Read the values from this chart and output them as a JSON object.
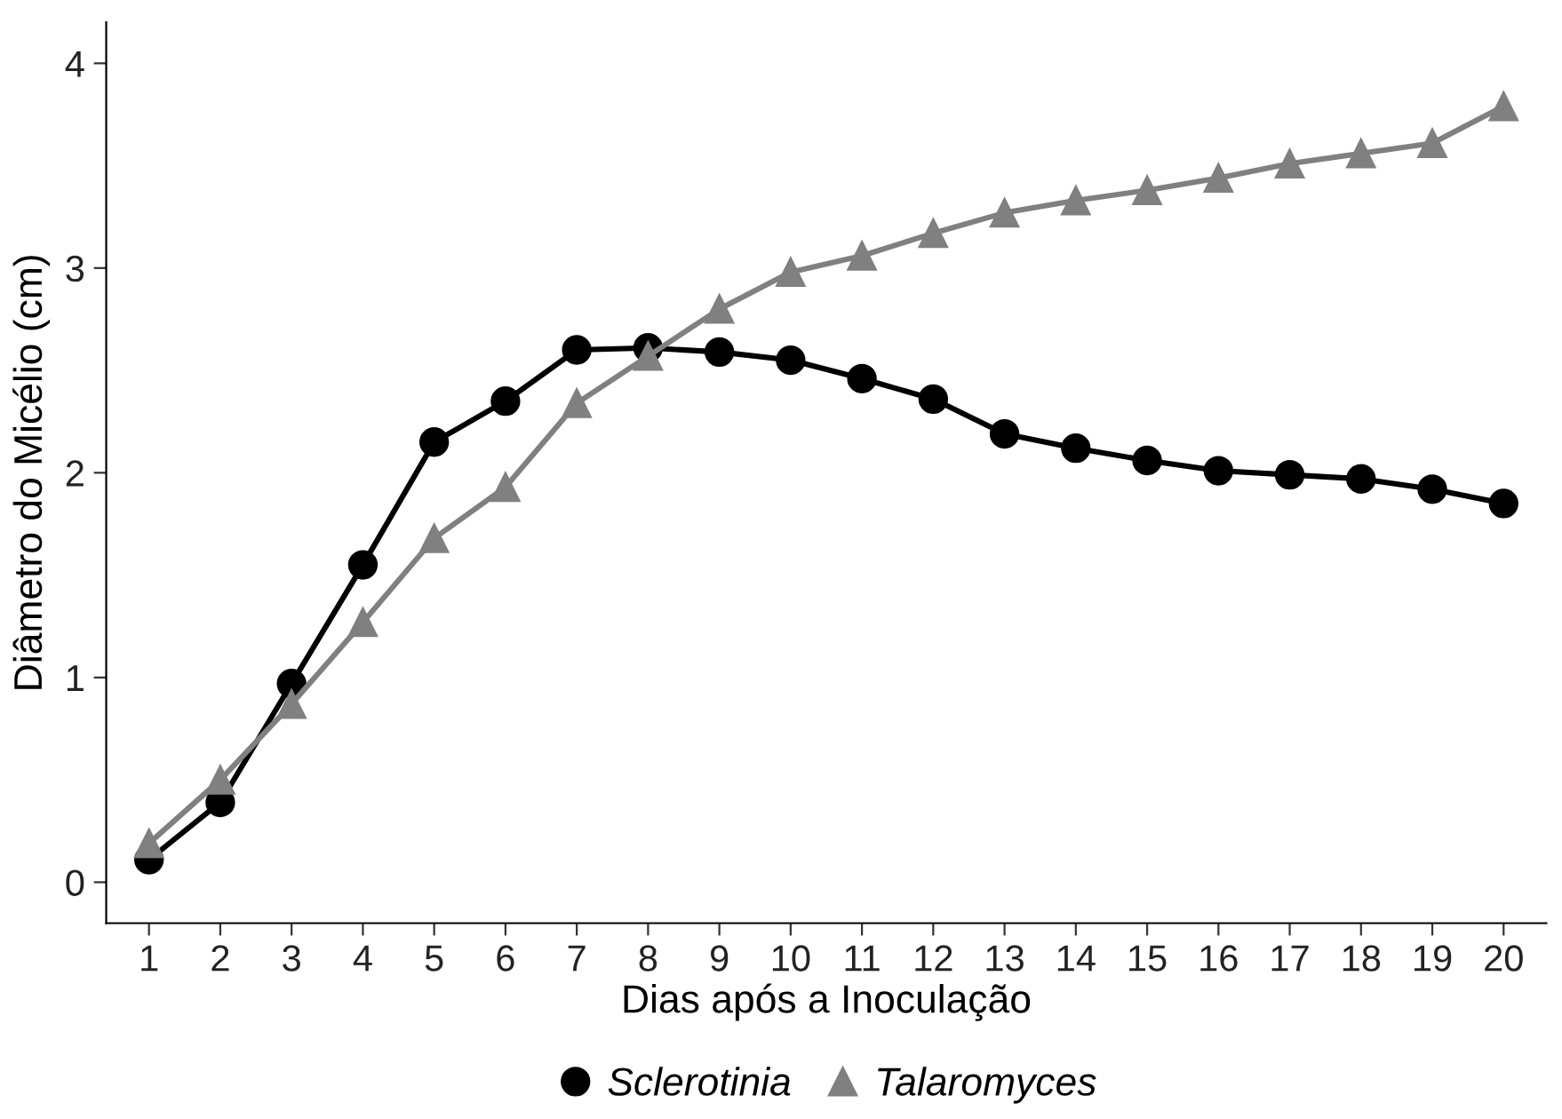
{
  "chart_data": {
    "type": "line",
    "xlabel": "Dias após a Inoculação",
    "ylabel": "Diâmetro do Micélio (cm)",
    "x": [
      1,
      2,
      3,
      4,
      5,
      6,
      7,
      8,
      9,
      10,
      11,
      12,
      13,
      14,
      15,
      16,
      17,
      18,
      19,
      20
    ],
    "xlim": [
      0.4,
      20.6
    ],
    "xticks": [
      1,
      2,
      3,
      4,
      5,
      6,
      7,
      8,
      9,
      10,
      11,
      12,
      13,
      14,
      15,
      16,
      17,
      18,
      19,
      20
    ],
    "ylim": [
      -0.2,
      4.2
    ],
    "yticks": [
      0,
      1,
      2,
      3,
      4
    ],
    "grid": false,
    "legend": "bottom",
    "series": [
      {
        "name": "Sclerotinia",
        "color": "#000000",
        "marker": "circle",
        "values": [
          0.11,
          0.39,
          0.97,
          1.55,
          2.15,
          2.35,
          2.6,
          2.61,
          2.59,
          2.55,
          2.46,
          2.36,
          2.19,
          2.12,
          2.06,
          2.01,
          1.99,
          1.97,
          1.92,
          1.85
        ]
      },
      {
        "name": "Talaromyces",
        "color": "#808080",
        "marker": "triangle",
        "values": [
          0.19,
          0.5,
          0.87,
          1.27,
          1.68,
          1.93,
          2.34,
          2.57,
          2.8,
          2.98,
          3.06,
          3.17,
          3.27,
          3.33,
          3.38,
          3.44,
          3.51,
          3.56,
          3.61,
          3.79
        ]
      }
    ]
  }
}
